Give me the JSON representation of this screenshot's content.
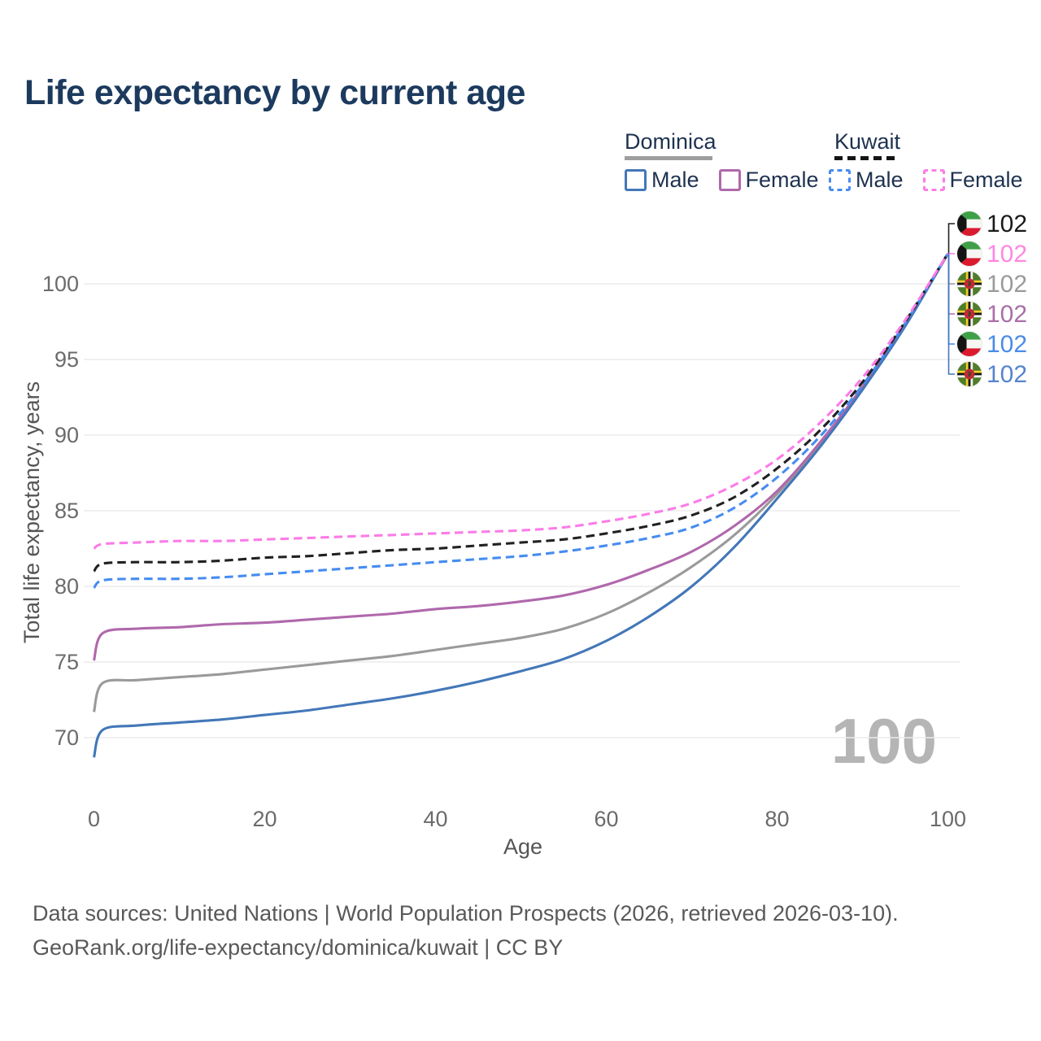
{
  "title": "Life expectancy by current age",
  "watermark": "100",
  "colors": {
    "title_text": "#1c3a5e",
    "axis_text": "#6b6b6b",
    "grid": "#ececec",
    "watermark": "#b5b5b5",
    "footer_text": "#595959",
    "legend_text": "#1e3250"
  },
  "legend": {
    "dominica": {
      "name": "Dominica",
      "line_style": "solid",
      "underline_color": "#9e9e9e",
      "male_label": "Male",
      "female_label": "Female",
      "male_color": "#4377b8",
      "female_color": "#b068ac"
    },
    "kuwait": {
      "name": "Kuwait",
      "line_style": "dashed",
      "underline_color": "#141414",
      "male_label": "Male",
      "female_label": "Female",
      "male_color": "#468cf0",
      "female_color": "#fb7ce8"
    }
  },
  "footer": {
    "line1": "Data sources: United Nations | World Population Prospects (2026, retrieved 2026-03-10).",
    "line2": "GeoRank.org/life-expectancy/dominica/kuwait | CC BY"
  },
  "chart_data": {
    "type": "line",
    "title": "Life expectancy by current age",
    "xlabel": "Age",
    "ylabel": "Total life expectancy, years",
    "x_ticks": [
      0,
      20,
      40,
      60,
      80,
      100
    ],
    "y_ticks": [
      70,
      75,
      80,
      85,
      90,
      95,
      100
    ],
    "xlim": [
      0,
      100
    ],
    "ylim": [
      67,
      103.5
    ],
    "grid": true,
    "legend_position": "top-right",
    "ages": [
      0,
      1,
      5,
      10,
      15,
      20,
      25,
      30,
      35,
      40,
      45,
      50,
      55,
      60,
      65,
      70,
      75,
      80,
      85,
      90,
      95,
      100
    ],
    "series": [
      {
        "id": "dominica-total",
        "name": "Dominica (both sexes)",
        "color": "#9a9a9a",
        "dashed": false,
        "values": [
          71.7,
          73.6,
          73.8,
          74.0,
          74.2,
          74.5,
          74.8,
          75.1,
          75.4,
          75.8,
          76.2,
          76.6,
          77.2,
          78.2,
          79.6,
          81.3,
          83.4,
          86.1,
          89.4,
          93.1,
          97.3,
          102
        ]
      },
      {
        "id": "dominica-female",
        "name": "Dominica Female",
        "color": "#b068ac",
        "dashed": false,
        "values": [
          75.1,
          76.9,
          77.2,
          77.3,
          77.5,
          77.6,
          77.8,
          78.0,
          78.2,
          78.5,
          78.7,
          79.0,
          79.4,
          80.1,
          81.1,
          82.3,
          84.0,
          86.3,
          89.5,
          93.2,
          97.4,
          102
        ]
      },
      {
        "id": "dominica-male",
        "name": "Dominica Male",
        "color": "#4377b8",
        "dashed": false,
        "values": [
          68.7,
          70.5,
          70.8,
          71.0,
          71.2,
          71.5,
          71.8,
          72.2,
          72.6,
          73.1,
          73.7,
          74.4,
          75.2,
          76.4,
          78.0,
          80.0,
          82.6,
          85.8,
          89.2,
          93.0,
          97.2,
          102
        ]
      },
      {
        "id": "kuwait-male",
        "name": "Kuwait Male",
        "color": "#468cf0",
        "dashed": true,
        "values": [
          79.9,
          80.4,
          80.5,
          80.5,
          80.6,
          80.8,
          81.0,
          81.2,
          81.4,
          81.6,
          81.8,
          82.0,
          82.3,
          82.7,
          83.2,
          83.9,
          85.2,
          87.2,
          89.9,
          93.3,
          97.4,
          102
        ]
      },
      {
        "id": "kuwait-total",
        "name": "Kuwait (both sexes)",
        "color": "#212121",
        "dashed": true,
        "values": [
          81.0,
          81.5,
          81.6,
          81.6,
          81.7,
          81.9,
          82.0,
          82.2,
          82.4,
          82.5,
          82.7,
          82.9,
          83.1,
          83.5,
          84.0,
          84.7,
          85.9,
          87.8,
          90.3,
          93.5,
          97.5,
          102
        ]
      },
      {
        "id": "kuwait-female",
        "name": "Kuwait Female",
        "color": "#fb7ce8",
        "dashed": true,
        "values": [
          82.5,
          82.8,
          82.9,
          83.0,
          83.0,
          83.1,
          83.2,
          83.3,
          83.4,
          83.5,
          83.6,
          83.7,
          83.9,
          84.3,
          84.8,
          85.5,
          86.7,
          88.4,
          90.8,
          93.8,
          97.6,
          102
        ]
      }
    ],
    "end_labels": [
      {
        "series": "kuwait-total",
        "flag": "kuwait",
        "value": "102",
        "text_color": "#1a1a1a"
      },
      {
        "series": "kuwait-female",
        "flag": "kuwait",
        "value": "102",
        "text_color": "#ff86e3"
      },
      {
        "series": "dominica-total",
        "flag": "dominica",
        "value": "102",
        "text_color": "#9a9a9a"
      },
      {
        "series": "dominica-female",
        "flag": "dominica",
        "value": "102",
        "text_color": "#a96fa8"
      },
      {
        "series": "kuwait-male",
        "flag": "kuwait",
        "value": "102",
        "text_color": "#4a8ce8"
      },
      {
        "series": "dominica-male",
        "flag": "dominica",
        "value": "102",
        "text_color": "#5585cd"
      }
    ]
  }
}
